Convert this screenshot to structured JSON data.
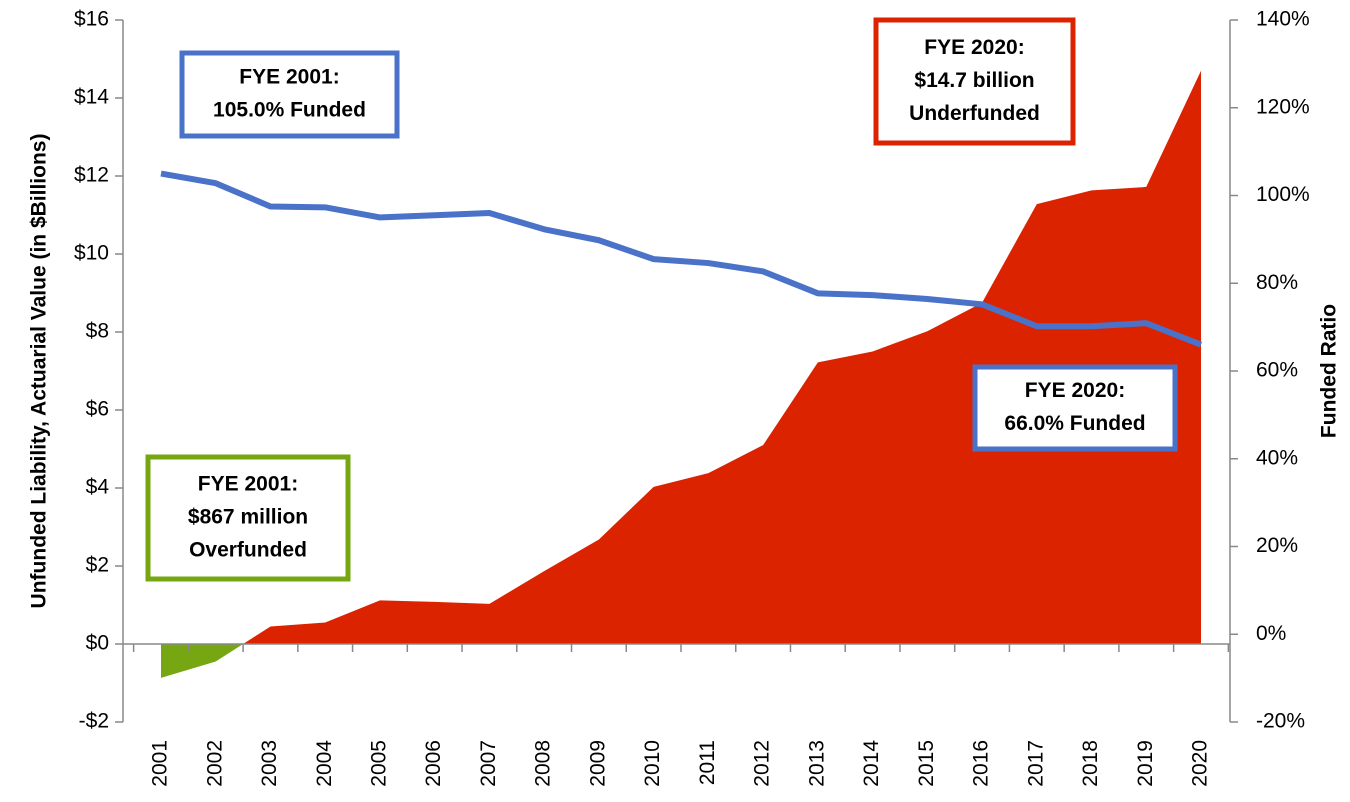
{
  "chart_data": {
    "type": "area-line",
    "x": [
      "2001",
      "2002",
      "2003",
      "2004",
      "2005",
      "2006",
      "2007",
      "2008",
      "2009",
      "2010",
      "2011",
      "2012",
      "2013",
      "2014",
      "2015",
      "2016",
      "2017",
      "2018",
      "2019",
      "2020"
    ],
    "y_axis_title": "Unfunded Liability, Actuarial Value (in $Billions)",
    "y2_axis_title": "Funded Ratio",
    "ylim": [
      -2,
      16
    ],
    "yticks": [
      {
        "value": -2,
        "label": "-$2"
      },
      {
        "value": 0,
        "label": "$0"
      },
      {
        "value": 2,
        "label": "$2"
      },
      {
        "value": 4,
        "label": "$4"
      },
      {
        "value": 6,
        "label": "$6"
      },
      {
        "value": 8,
        "label": "$8"
      },
      {
        "value": 10,
        "label": "$10"
      },
      {
        "value": 12,
        "label": "$12"
      },
      {
        "value": 14,
        "label": "$14"
      },
      {
        "value": 16,
        "label": "$16"
      }
    ],
    "y2lim": [
      -20,
      140
    ],
    "y2ticks": [
      {
        "value": -20,
        "label": "-20%"
      },
      {
        "value": 0,
        "label": "0%"
      },
      {
        "value": 20,
        "label": "20%"
      },
      {
        "value": 40,
        "label": "40%"
      },
      {
        "value": 60,
        "label": "60%"
      },
      {
        "value": 80,
        "label": "80%"
      },
      {
        "value": 100,
        "label": "100%"
      },
      {
        "value": 120,
        "label": "120%"
      },
      {
        "value": 140,
        "label": "140%"
      }
    ],
    "series": [
      {
        "type": "area",
        "color": "#dc2300",
        "negative_color": "#76a712",
        "values": [
          -0.867,
          -0.45,
          0.45,
          0.55,
          1.12,
          1.08,
          1.03,
          1.87,
          2.68,
          4.03,
          4.38,
          5.1,
          7.22,
          7.5,
          8.02,
          8.75,
          11.28,
          11.63,
          11.72,
          14.7
        ]
      },
      {
        "type": "line",
        "axis": "y2",
        "color": "#4a72c8",
        "values": [
          105.0,
          102.8,
          97.5,
          97.3,
          95.0,
          95.5,
          96.0,
          92.3,
          89.8,
          85.5,
          84.6,
          82.7,
          77.7,
          77.3,
          76.4,
          75.2,
          70.2,
          70.2,
          70.9,
          66.0
        ]
      }
    ],
    "annotations": [
      {
        "lines": [
          "FYE 2001:",
          "105.0% Funded"
        ],
        "color": "#4a72c8"
      },
      {
        "lines": [
          "FYE 2020:",
          "$14.7 billion",
          "Underfunded"
        ],
        "color": "#dc2300"
      },
      {
        "lines": [
          "FYE 2020:",
          "66.0% Funded"
        ],
        "color": "#4a72c8"
      },
      {
        "lines": [
          "FYE 2001:",
          "$867 million",
          "Overfunded"
        ],
        "color": "#76a712"
      }
    ]
  }
}
